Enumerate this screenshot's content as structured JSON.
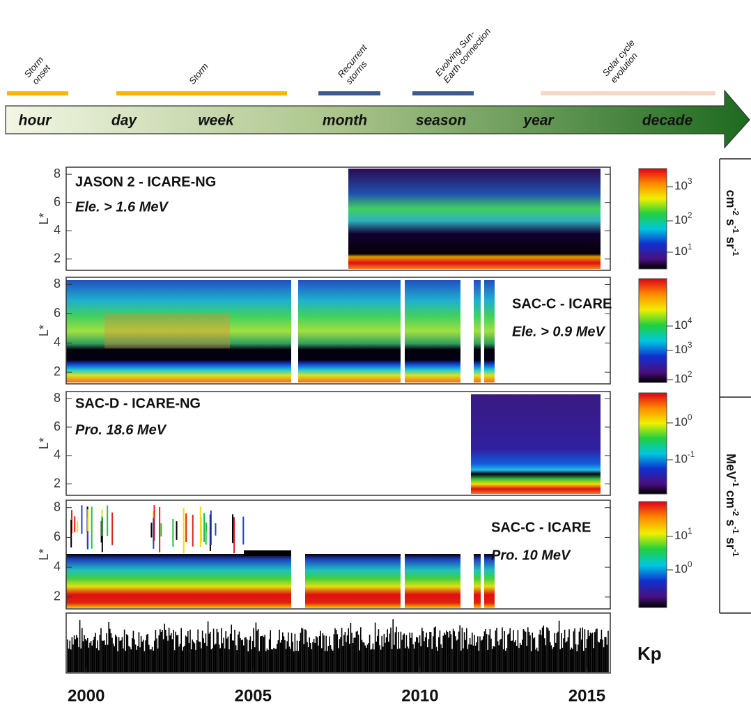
{
  "events": [
    {
      "lines": [
        "Storm",
        "onset"
      ],
      "color": "#f5b800"
    },
    {
      "lines": [
        "Storm"
      ],
      "color": "#f5b800"
    },
    {
      "lines": [
        "Recurrent",
        "storms"
      ],
      "color": "#3d5a8a"
    },
    {
      "lines": [
        "Evolving Sun-",
        "Earth connection"
      ],
      "color": "#3d5a8a"
    },
    {
      "lines": [
        "Solar cycle",
        "evolution"
      ],
      "color": "#f6d7c3"
    }
  ],
  "timescale": [
    "hour",
    "day",
    "week",
    "month",
    "season",
    "year",
    "decade"
  ],
  "panels": [
    {
      "title": "JASON 2 - ICARE-NG",
      "subtitle": "Ele. > 1.6 MeV",
      "y_label": "L*",
      "ylim": [
        1.2,
        8.5
      ],
      "yticks": [
        2,
        4,
        6,
        8
      ],
      "colorbar_ticks": [
        {
          "base": "10",
          "exp": "3"
        },
        {
          "base": "10",
          "exp": "2"
        },
        {
          "base": "10",
          "exp": "1"
        }
      ]
    },
    {
      "title": "SAC-C - ICARE",
      "subtitle": "Ele. > 0.9 MeV",
      "y_label": "L*",
      "ylim": [
        1.2,
        8.5
      ],
      "yticks": [
        2,
        4,
        6,
        8
      ],
      "colorbar_ticks": [
        {
          "base": "10",
          "exp": "4"
        },
        {
          "base": "10",
          "exp": "3"
        },
        {
          "base": "10",
          "exp": "2"
        }
      ]
    },
    {
      "title": "SAC-D - ICARE-NG",
      "subtitle": "Pro. 18.6 MeV",
      "y_label": "L*",
      "ylim": [
        1.2,
        8.5
      ],
      "yticks": [
        2,
        4,
        6,
        8
      ],
      "colorbar_ticks": [
        {
          "base": "10",
          "exp": "0"
        },
        {
          "base": "10",
          "exp": "-1"
        }
      ]
    },
    {
      "title": "SAC-C - ICARE",
      "subtitle": "Pro. 10 MeV",
      "y_label": "L*",
      "ylim": [
        1.2,
        8.5
      ],
      "yticks": [
        2,
        4,
        6,
        8
      ],
      "colorbar_ticks": [
        {
          "base": "10",
          "exp": "1"
        },
        {
          "base": "10",
          "exp": "0"
        }
      ]
    }
  ],
  "kp_label": "Kp",
  "x_axis": {
    "xlim": [
      1999.4,
      2015.7
    ],
    "xticks": [
      2000,
      2005,
      2010,
      2015
    ]
  },
  "units": [
    [
      {
        "base": "cm",
        "exp": "-2"
      },
      {
        "base": " s",
        "exp": "-1"
      },
      {
        "base": " sr",
        "exp": "-1"
      }
    ],
    [
      {
        "base": "MeV",
        "exp": "-1"
      },
      {
        "base": " cm",
        "exp": "-2"
      },
      {
        "base": " s",
        "exp": "-1"
      },
      {
        "base": " sr",
        "exp": "-1"
      }
    ]
  ]
}
